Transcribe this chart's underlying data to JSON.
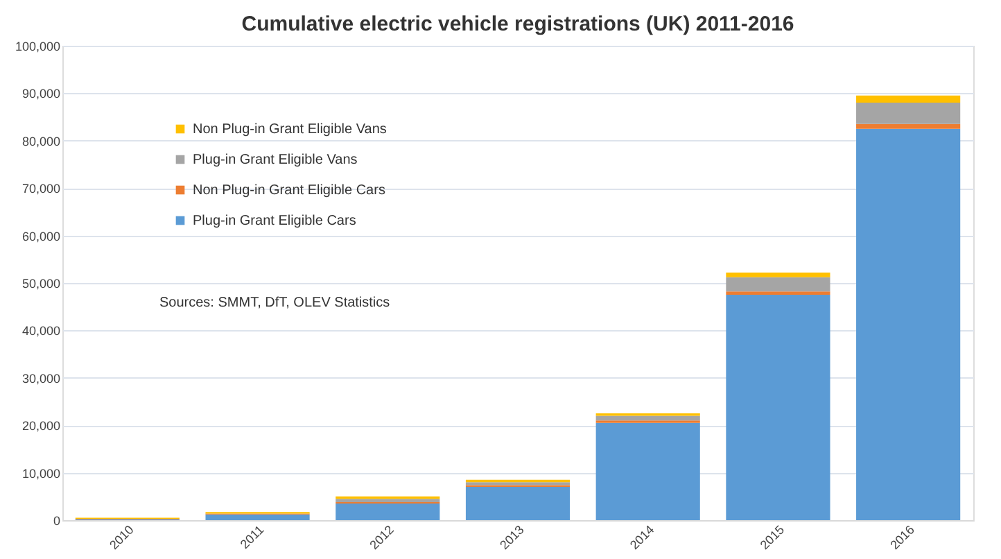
{
  "chart_data": {
    "type": "bar",
    "title": "Cumulative electric vehicle registrations (UK) 2011-2016",
    "categories": [
      "2010",
      "2011",
      "2012",
      "2013",
      "2014",
      "2015",
      "2016"
    ],
    "stacked": true,
    "series": [
      {
        "name": "Plug-in Grant Eligible Cars",
        "color": "#5b9bd5",
        "values": [
          200,
          1200,
          3500,
          7000,
          20500,
          47500,
          82500
        ]
      },
      {
        "name": "Non Plug-in Grant Eligible Cars",
        "color": "#ed7d31",
        "values": [
          100,
          200,
          300,
          400,
          500,
          700,
          1000
        ]
      },
      {
        "name": "Plug-in Grant Eligible Vans",
        "color": "#a5a5a5",
        "values": [
          null,
          null,
          700,
          600,
          1000,
          3000,
          4500
        ]
      },
      {
        "name": "Non Plug-in Grant Eligible Vans",
        "color": "#ffc000",
        "values": [
          200,
          300,
          500,
          500,
          500,
          1000,
          1500
        ]
      }
    ],
    "ylim": [
      0,
      100000
    ],
    "yticks": [
      {
        "value": 0,
        "label": "0"
      },
      {
        "value": 10000,
        "label": "10,000"
      },
      {
        "value": 20000,
        "label": "20,000"
      },
      {
        "value": 30000,
        "label": "30,000"
      },
      {
        "value": 40000,
        "label": "40,000"
      },
      {
        "value": 50000,
        "label": "50,000"
      },
      {
        "value": 60000,
        "label": "60,000"
      },
      {
        "value": 70000,
        "label": "70,000"
      },
      {
        "value": 80000,
        "label": "80,000"
      },
      {
        "value": 90000,
        "label": "90,000"
      },
      {
        "value": 100000,
        "label": "100,000"
      }
    ],
    "grid": "y",
    "legend": "top left",
    "annotations": [
      "Sources: SMMT, DfT, OLEV Statistics"
    ]
  }
}
